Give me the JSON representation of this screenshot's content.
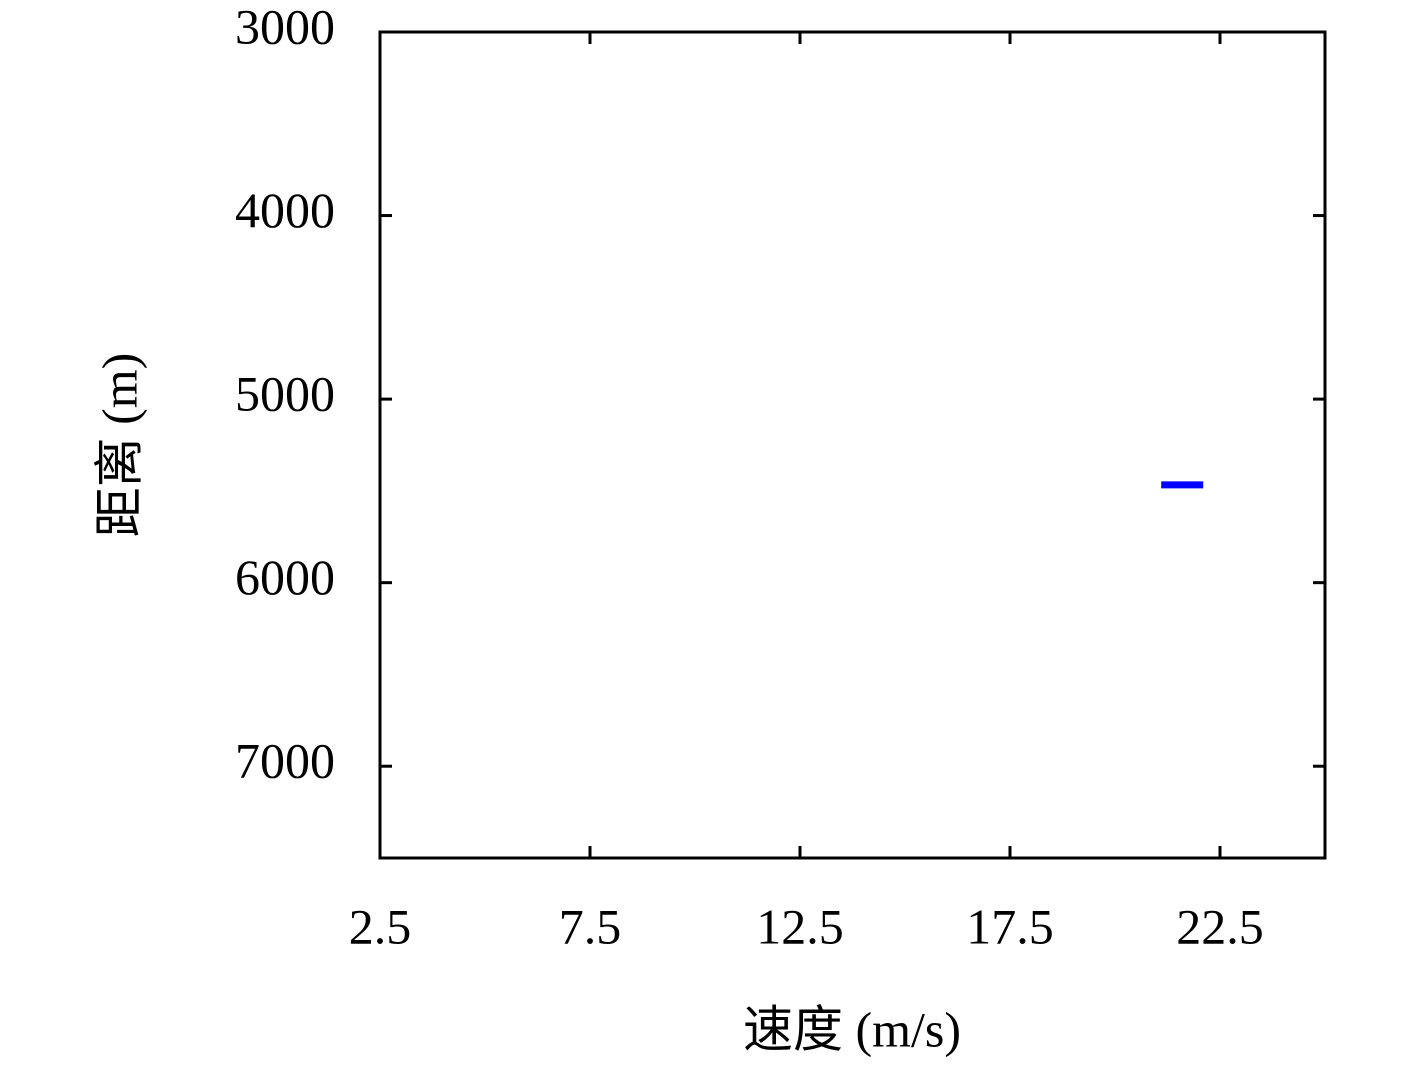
{
  "chart_data": {
    "type": "line",
    "x_label": "速度 (m/s)",
    "y_label": "距离 (m)",
    "xlim": [
      2.5,
      25
    ],
    "xticks": [
      2.5,
      7.5,
      12.5,
      17.5,
      22.5
    ],
    "ylim": [
      7500,
      3000
    ],
    "yticks": [
      3000,
      4000,
      5000,
      6000,
      7000
    ],
    "series": [
      {
        "color": "#0000ff",
        "x": [
          21.1,
          22.1
        ],
        "values": [
          5467,
          5467
        ]
      }
    ]
  }
}
